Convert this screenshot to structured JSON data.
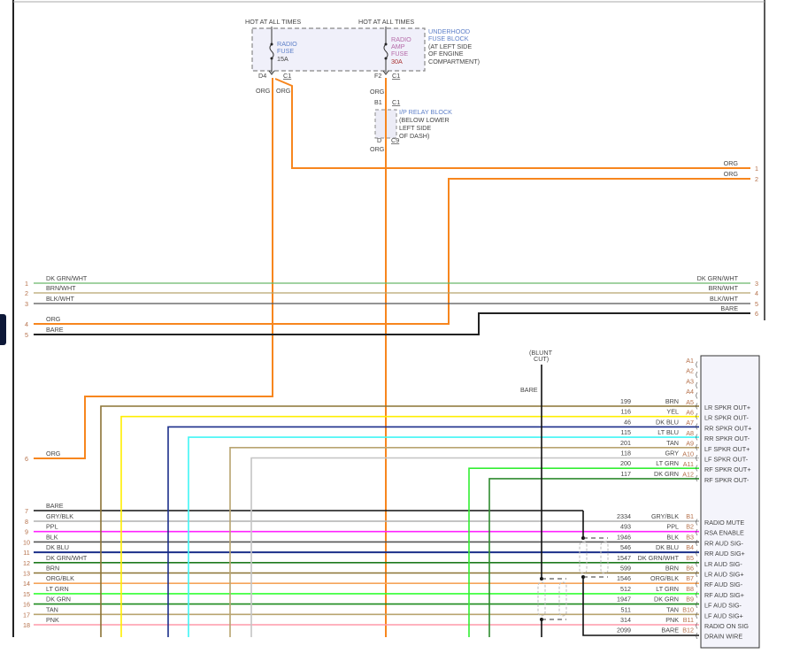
{
  "fuse_block": {
    "hot_left": "HOT AT ALL TIMES",
    "hot_right": "HOT AT ALL TIMES",
    "name_lines": [
      "UNDERHOOD",
      "FUSE BLOCK"
    ],
    "location_lines": [
      "(AT LEFT SIDE",
      "OF ENGINE",
      "COMPARTMENT)"
    ],
    "radio_fuse": {
      "lines": [
        "RADIO",
        "FUSE"
      ],
      "rating": "15A",
      "pin": "D4",
      "connector": "C1",
      "wire_color_label": "ORG"
    },
    "amp_fuse": {
      "lines": [
        "RADIO",
        "AMP",
        "FUSE"
      ],
      "rating": "30A",
      "pin": "F2",
      "connector": "C1",
      "wire_color_label": "ORG"
    },
    "jumper_label": "ORG"
  },
  "relay_block": {
    "in_pin": "B1",
    "in_connector": "C1",
    "name_line": "I/P RELAY BLOCK",
    "location_lines": [
      "(BELOW LOWER",
      "LEFT SIDE",
      "OF DASH)"
    ],
    "out_pin": "D",
    "out_connector": "C9",
    "out_wire_label": "ORG"
  },
  "blunt_cut": {
    "lines": [
      "(BLUNT",
      "CUT)"
    ],
    "wire_label": "BARE"
  },
  "right_top_pins": [
    {
      "num": "1",
      "label": "ORG",
      "color": "#f7861e"
    },
    {
      "num": "2",
      "label": "ORG",
      "color": "#f7861e"
    },
    {
      "num": "3",
      "label": "DK GRN/WHT",
      "color": "#6ab86a"
    },
    {
      "num": "4",
      "label": "BRN/WHT",
      "color": "#b7a56e"
    },
    {
      "num": "5",
      "label": "BLK/WHT",
      "color": "#555555"
    },
    {
      "num": "6",
      "label": "BARE",
      "color": "#111111"
    }
  ],
  "left_pins": [
    {
      "num": "1",
      "label": "DK GRN/WHT",
      "color": "#6ab86a"
    },
    {
      "num": "2",
      "label": "BRN/WHT",
      "color": "#b7a56e"
    },
    {
      "num": "3",
      "label": "BLK/WHT",
      "color": "#555555"
    },
    {
      "num": "4",
      "label": "ORG",
      "color": "#f7861e"
    },
    {
      "num": "5",
      "label": "BARE",
      "color": "#222222"
    },
    {
      "num": "6",
      "label": "ORG",
      "color": "#f7861e"
    },
    {
      "num": "7",
      "label": "BARE",
      "color": "#111111"
    },
    {
      "num": "8",
      "label": "GRY/BLK",
      "color": "#b0b0b0"
    },
    {
      "num": "9",
      "label": "PPL",
      "color": "#ff22ff"
    },
    {
      "num": "10",
      "label": "BLK",
      "color": "#555555"
    },
    {
      "num": "11",
      "label": "DK BLU",
      "color": "#1b2f8a"
    },
    {
      "num": "12",
      "label": "DK GRN/WHT",
      "color": "#1d7a1d"
    },
    {
      "num": "13",
      "label": "BRN",
      "color": "#8b7335"
    },
    {
      "num": "14",
      "label": "ORG/BLK",
      "color": "#f5a45a"
    },
    {
      "num": "15",
      "label": "LT GRN",
      "color": "#33ff33"
    },
    {
      "num": "16",
      "label": "DK GRN",
      "color": "#1d8a1d"
    },
    {
      "num": "17",
      "label": "TAN",
      "color": "#b8a470"
    },
    {
      "num": "18",
      "label": "PNK",
      "color": "#ff9aaa"
    }
  ],
  "radio_connector_a": [
    {
      "pin": "A1"
    },
    {
      "pin": "A2"
    },
    {
      "pin": "A3"
    },
    {
      "pin": "A4"
    },
    {
      "pin": "A5",
      "circuit": "199",
      "color_label": "BRN",
      "function": "LR SPKR OUT+",
      "color": "#8b7335"
    },
    {
      "pin": "A6",
      "circuit": "116",
      "color_label": "YEL",
      "function": "LR SPKR OUT-",
      "color": "#ffee00"
    },
    {
      "pin": "A7",
      "circuit": "46",
      "color_label": "DK BLU",
      "function": "RR SPKR OUT+",
      "color": "#1b2f8a"
    },
    {
      "pin": "A8",
      "circuit": "115",
      "color_label": "LT BLU",
      "function": "RR SPKR OUT-",
      "color": "#40f5f5"
    },
    {
      "pin": "A9",
      "circuit": "201",
      "color_label": "TAN",
      "function": "LF SPKR OUT+",
      "color": "#b8a470"
    },
    {
      "pin": "A10",
      "circuit": "118",
      "color_label": "GRY",
      "function": "LF SPKR OUT-",
      "color": "#c4c4c4"
    },
    {
      "pin": "A11",
      "circuit": "200",
      "color_label": "LT GRN",
      "function": "RF SPKR OUT+",
      "color": "#33ee33"
    },
    {
      "pin": "A12",
      "circuit": "117",
      "color_label": "DK GRN",
      "function": "RF SPKR OUT-",
      "color": "#2e8b2e"
    }
  ],
  "radio_connector_b": [
    {
      "pin": "B1",
      "circuit": "2334",
      "color_label": "GRY/BLK",
      "function": "RADIO MUTE"
    },
    {
      "pin": "B2",
      "circuit": "493",
      "color_label": "PPL",
      "function": "RSA ENABLE"
    },
    {
      "pin": "B3",
      "circuit": "1946",
      "color_label": "BLK",
      "function": "RR AUD SIG-"
    },
    {
      "pin": "B4",
      "circuit": "546",
      "color_label": "DK BLU",
      "function": "RR AUD SIG+"
    },
    {
      "pin": "B5",
      "circuit": "1547",
      "color_label": "DK GRN/WHT",
      "function": "LR AUD SIG-"
    },
    {
      "pin": "B6",
      "circuit": "599",
      "color_label": "BRN",
      "function": "LR AUD SIG+"
    },
    {
      "pin": "B7",
      "circuit": "1546",
      "color_label": "ORG/BLK",
      "function": "RF AUD SIG-"
    },
    {
      "pin": "B8",
      "circuit": "512",
      "color_label": "LT GRN",
      "function": "RF AUD SIG+"
    },
    {
      "pin": "B9",
      "circuit": "1947",
      "color_label": "DK GRN",
      "function": "LF AUD SIG-"
    },
    {
      "pin": "B10",
      "circuit": "511",
      "color_label": "TAN",
      "function": "LF AUD SIG+"
    },
    {
      "pin": "B11",
      "circuit": "314",
      "color_label": "PNK",
      "function": "RADIO ON SIG"
    },
    {
      "pin": "B12",
      "circuit": "2099",
      "color_label": "BARE",
      "function": "DRAIN WIRE"
    }
  ]
}
